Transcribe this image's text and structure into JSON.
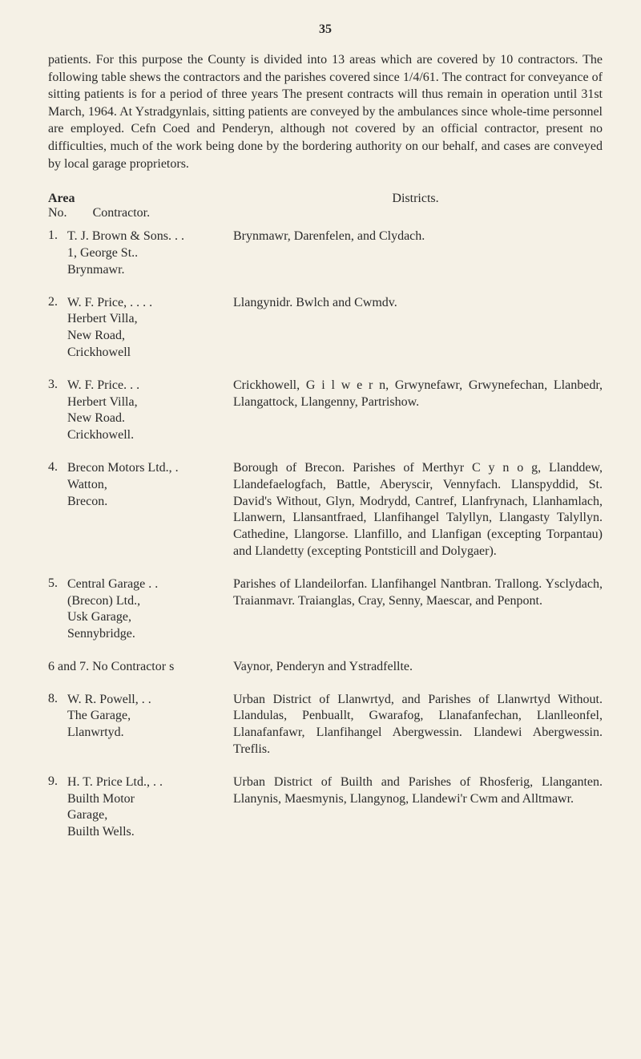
{
  "page_number": "35",
  "intro_text": "patients. For this purpose the County is divided into 13 areas which are covered by 10 contractors. The following table shews the contractors and the parishes covered since 1/4/61. The contract for conveyance of sitting patients is for a period of three years The present contracts will thus remain in operation until 31st March, 1964. At Ystradgynlais, sitting patients are conveyed by the ambulances since whole-time personnel are employed. Cefn Coed and Penderyn, although not covered by an official contractor, present no difficulties, much of the work being done by the bordering authority on our behalf, and cases are conveyed by local garage proprietors.",
  "header": {
    "area_label": "Area",
    "no_label": "No.",
    "contractor_label": "Contractor.",
    "districts_label": "Districts."
  },
  "entries": [
    {
      "num": "1.",
      "contractor": "T. J. Brown & Sons. . .\n1, George St..\nBrynmawr.",
      "districts": "Brynmawr, Darenfelen, and Clydach."
    },
    {
      "num": "2.",
      "contractor": "W. F. Price,          . . . .\nHerbert Villa,\nNew Road,\nCrickhowell",
      "districts": "Llangynidr. Bwlch and Cwmdv."
    },
    {
      "num": "3.",
      "contractor": "W. F. Price.            . .\nHerbert Villa,\nNew Road.\nCrickhowell.",
      "districts": "Crickhowell, G i l w e r n, Grwynefawr, Grwynefechan, Llanbedr, Llangattock, Llangenny, Partrishow."
    },
    {
      "num": "4.",
      "contractor": "Brecon Motors Ltd., .\nWatton,\nBrecon.",
      "districts": "Borough of Brecon. Parishes of Merthyr C y n o g, Llanddew, Llandefaelogfach, Battle, Aberyscir, Vennyfach. Llanspyddid, St. David's Without, Glyn, Modrydd, Cantref, Llanfrynach, Llanhamlach, Llanwern, Llansantfraed, Llanfihangel Talyllyn, Llangasty Talyllyn. Cathedine, Llangorse. Llanfillo, and Llanfigan (excepting Torpantau) and Llandetty (excepting Pontsticill and Dolygaer)."
    },
    {
      "num": "5.",
      "contractor": "Central Garage        . .\n(Brecon) Ltd.,\nUsk Garage,\nSennybridge.",
      "districts": "Parishes of Llandeilorfan. Llanfihangel Nantbran. Trallong. Ysclydach, Traianmavr. Traianglas, Cray, Senny, Maescar, and Penpont."
    },
    {
      "num": "",
      "contractor": "6 and 7. No Contractor s",
      "districts": "Vaynor, Penderyn and Ystradfellte."
    },
    {
      "num": "8.",
      "contractor": "W. R. Powell,          . .\nThe Garage,\nLlanwrtyd.",
      "districts": "Urban District of Llanwrtyd, and Parishes of Llanwrtyd Without. Llandulas, Penbuallt, Gwarafog, Llanafanfechan, Llanlleonfel, Llanafanfawr, Llanfihangel Abergwessin. Llandewi Abergwessin. Treflis."
    },
    {
      "num": "9.",
      "contractor": "H. T. Price Ltd.,      . .\nBuilth Motor\nGarage,\nBuilth Wells.",
      "districts": "Urban District of Builth and Parishes of Rhosferig, Llanganten. Llanynis, Maesmynis, Llangynog, Llandewi'r Cwm and Alltmawr."
    }
  ]
}
